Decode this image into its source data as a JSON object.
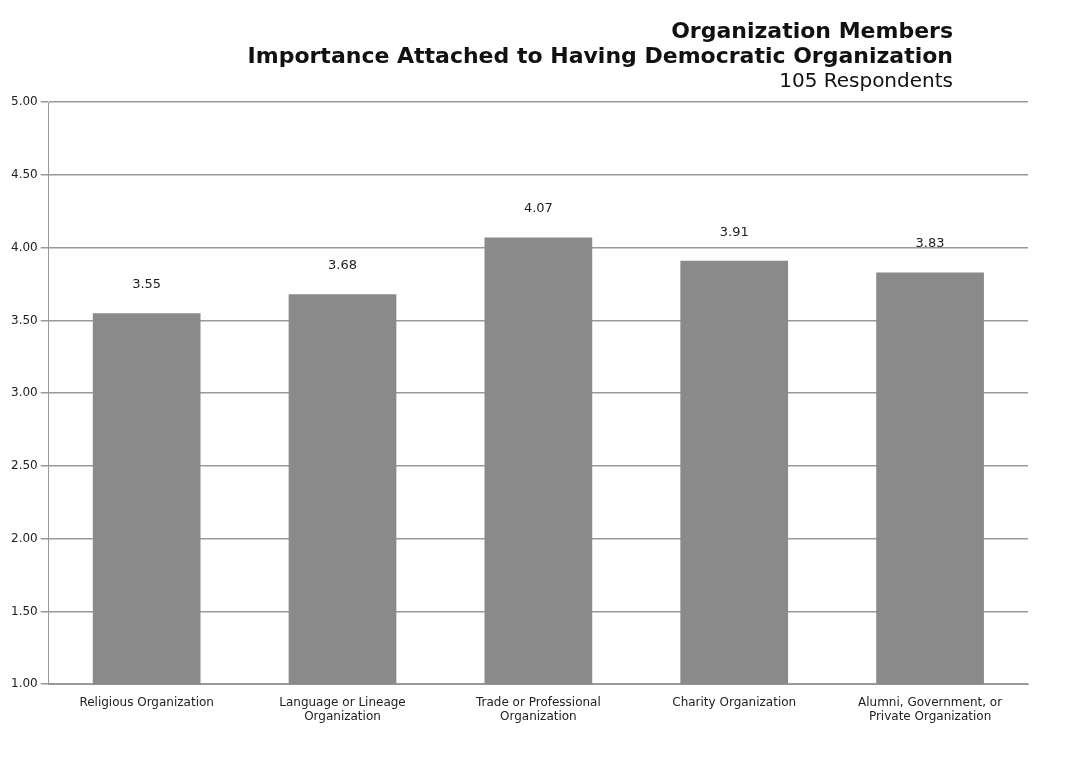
{
  "chart_data": {
    "type": "bar",
    "title": "Organization Members",
    "subtitle": "Importance Attached to Having Democratic Organization",
    "annotations": [
      "105 Respondents"
    ],
    "categories": [
      "Religious Organization",
      "Language or Lineage Organization",
      "Trade or Professional Organization",
      "Charity Organization",
      "Alumni, Government, or Private Organization"
    ],
    "values": [
      3.55,
      3.68,
      4.07,
      3.91,
      3.83
    ],
    "color": "#8a8a8a",
    "ylim": [
      1,
      5
    ],
    "yticks": [
      {
        "value": 1,
        "label": "1.00"
      },
      {
        "value": 1.5,
        "label": "1.50"
      },
      {
        "value": 2,
        "label": "2.00"
      },
      {
        "value": 2.5,
        "label": "2.50"
      },
      {
        "value": 3,
        "label": "3.00"
      },
      {
        "value": 3.5,
        "label": "3.50"
      },
      {
        "value": 4,
        "label": "4.00"
      },
      {
        "value": 4.5,
        "label": "4.50"
      },
      {
        "value": 5,
        "label": "5.00"
      }
    ],
    "grid": "y",
    "data_labels": true
  }
}
